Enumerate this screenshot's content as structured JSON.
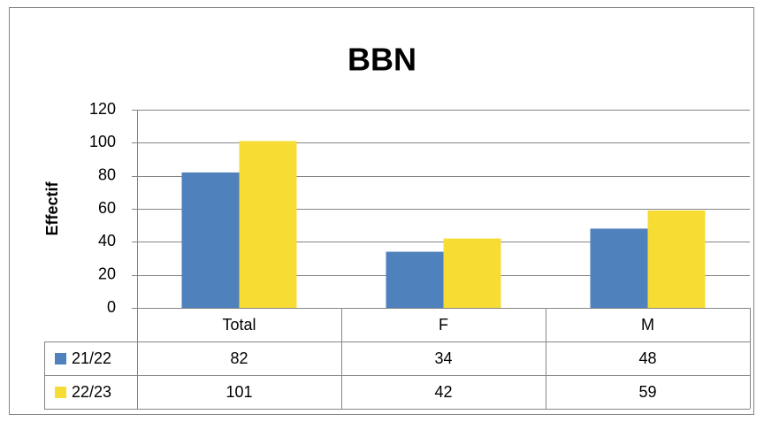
{
  "chart_data": {
    "type": "bar",
    "title": "BBN",
    "y_label": "Effectif",
    "categories": [
      "Total",
      "F",
      "M"
    ],
    "series": [
      {
        "name": "21/22",
        "color": "#4f81bd",
        "values": [
          82,
          34,
          48
        ]
      },
      {
        "name": "22/23",
        "color": "#f7dc33",
        "values": [
          101,
          42,
          59
        ]
      }
    ],
    "ylim": [
      0,
      120
    ],
    "yticks": [
      0,
      20,
      40,
      60,
      80,
      100,
      120
    ],
    "grid": true,
    "data_table": true
  }
}
